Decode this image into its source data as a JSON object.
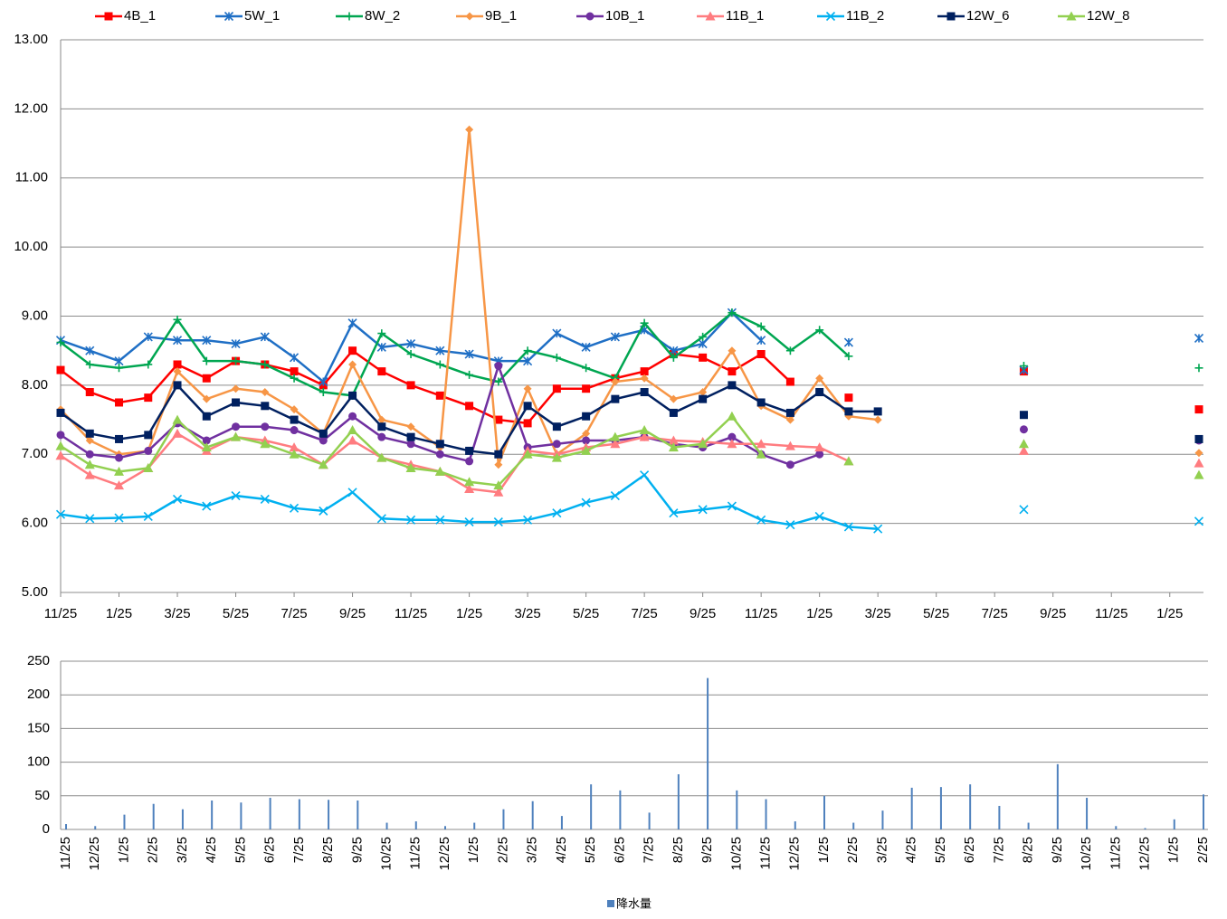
{
  "chart_data": [
    {
      "type": "line",
      "legend": "top",
      "grid": true,
      "ylim": [
        5,
        13
      ],
      "yticks": [
        {
          "value": 5,
          "label": "5.00"
        },
        {
          "value": 6,
          "label": "6.00"
        },
        {
          "value": 7,
          "label": "7.00"
        },
        {
          "value": 8,
          "label": "8.00"
        },
        {
          "value": 9,
          "label": "9.00"
        },
        {
          "value": 10,
          "label": "10.00"
        },
        {
          "value": 11,
          "label": "11.00"
        },
        {
          "value": 12,
          "label": "12.00"
        },
        {
          "value": 13,
          "label": "13.00"
        }
      ],
      "categories": [
        "11/25",
        null,
        "1/25",
        null,
        "3/25",
        null,
        "5/25",
        null,
        "7/25",
        null,
        "9/25",
        null,
        "11/25",
        null,
        "1/25",
        null,
        "3/25",
        null,
        "5/25",
        null,
        "7/25",
        null,
        "9/25",
        null,
        "11/25",
        null,
        "1/25",
        null,
        "3/25",
        null,
        "5/25",
        null,
        "7/25",
        null,
        "9/25",
        null,
        "11/25",
        null,
        "1/25",
        null
      ],
      "series": [
        {
          "name": "4B_1",
          "color": "#ff0000",
          "marker": "square",
          "values": [
            8.22,
            7.9,
            7.75,
            7.82,
            8.3,
            8.1,
            8.35,
            8.3,
            8.2,
            8.0,
            8.5,
            8.2,
            8.0,
            7.85,
            7.7,
            7.5,
            7.45,
            7.95,
            7.95,
            8.1,
            8.2,
            8.45,
            8.4,
            8.2,
            8.45,
            8.05,
            null,
            7.82,
            null,
            null,
            null,
            null,
            null,
            8.2,
            null,
            null,
            null,
            null,
            null,
            7.65
          ]
        },
        {
          "name": "5W_1",
          "color": "#1f6fc5",
          "marker": "star",
          "values": [
            8.65,
            8.5,
            8.35,
            8.7,
            8.65,
            8.65,
            8.6,
            8.7,
            8.4,
            8.05,
            8.9,
            8.55,
            8.6,
            8.5,
            8.45,
            8.35,
            8.35,
            8.75,
            8.55,
            8.7,
            8.8,
            8.5,
            8.6,
            9.05,
            8.65,
            null,
            null,
            8.62,
            null,
            null,
            null,
            null,
            null,
            8.22,
            null,
            null,
            null,
            null,
            null,
            8.68
          ]
        },
        {
          "name": "8W_2",
          "color": "#00a651",
          "marker": "plus",
          "values": [
            8.62,
            8.3,
            8.25,
            8.3,
            8.95,
            8.35,
            8.35,
            8.3,
            8.1,
            7.9,
            7.85,
            8.75,
            8.45,
            8.3,
            8.15,
            8.05,
            8.5,
            8.4,
            8.25,
            8.1,
            8.9,
            8.4,
            8.7,
            9.05,
            8.85,
            8.5,
            8.8,
            8.42,
            null,
            null,
            null,
            null,
            null,
            8.28,
            null,
            null,
            null,
            null,
            null,
            8.25
          ]
        },
        {
          "name": "9B_1",
          "color": "#f79646",
          "marker": "diamond",
          "values": [
            7.65,
            7.2,
            7.0,
            7.05,
            8.2,
            7.8,
            7.95,
            7.9,
            7.65,
            7.3,
            8.3,
            7.5,
            7.4,
            7.1,
            11.7,
            6.85,
            7.95,
            7.0,
            7.3,
            8.05,
            8.1,
            7.8,
            7.9,
            8.5,
            7.7,
            7.5,
            8.1,
            7.55,
            7.5,
            null,
            null,
            null,
            null,
            null,
            null,
            null,
            null,
            null,
            null,
            7.02
          ]
        },
        {
          "name": "10B_1",
          "color": "#7030a0",
          "marker": "circle",
          "values": [
            7.28,
            7.0,
            6.95,
            7.05,
            7.45,
            7.2,
            7.4,
            7.4,
            7.35,
            7.2,
            7.55,
            7.25,
            7.15,
            7.0,
            6.9,
            8.28,
            7.1,
            7.15,
            7.2,
            7.2,
            7.25,
            7.15,
            7.1,
            7.25,
            7.0,
            6.85,
            7.0,
            null,
            null,
            null,
            null,
            null,
            null,
            7.36,
            null,
            null,
            null,
            null,
            null,
            7.2
          ]
        },
        {
          "name": "11B_1",
          "color": "#ff7c80",
          "marker": "triangle",
          "values": [
            6.98,
            6.7,
            6.55,
            6.8,
            7.3,
            7.05,
            7.25,
            7.2,
            7.1,
            6.85,
            7.2,
            6.95,
            6.85,
            6.75,
            6.5,
            6.45,
            7.05,
            7.0,
            7.1,
            7.15,
            7.25,
            7.2,
            7.18,
            7.15,
            7.15,
            7.12,
            7.1,
            6.9,
            null,
            null,
            null,
            null,
            null,
            7.05,
            null,
            null,
            null,
            null,
            null,
            6.87
          ]
        },
        {
          "name": "11B_2",
          "color": "#00b0f0",
          "marker": "x",
          "values": [
            6.13,
            6.07,
            6.08,
            6.1,
            6.35,
            6.25,
            6.4,
            6.35,
            6.22,
            6.18,
            6.45,
            6.07,
            6.05,
            6.05,
            6.02,
            6.02,
            6.05,
            6.15,
            6.3,
            6.4,
            6.7,
            6.15,
            6.2,
            6.25,
            6.05,
            5.98,
            6.1,
            5.95,
            5.92,
            null,
            null,
            null,
            null,
            6.2,
            null,
            null,
            null,
            null,
            null,
            6.03
          ]
        },
        {
          "name": "12W_6",
          "color": "#002060",
          "marker": "square",
          "values": [
            7.6,
            7.3,
            7.22,
            7.28,
            8.0,
            7.55,
            7.75,
            7.7,
            7.5,
            7.3,
            7.85,
            7.4,
            7.25,
            7.15,
            7.05,
            7.0,
            7.7,
            7.4,
            7.55,
            7.8,
            7.9,
            7.6,
            7.8,
            8.0,
            7.75,
            7.6,
            7.9,
            7.62,
            7.62,
            null,
            null,
            null,
            null,
            7.57,
            null,
            null,
            null,
            null,
            null,
            7.22
          ]
        },
        {
          "name": "12W_8",
          "color": "#92d050",
          "marker": "triangle",
          "values": [
            7.12,
            6.85,
            6.75,
            6.8,
            7.5,
            7.1,
            7.25,
            7.15,
            7.0,
            6.85,
            7.35,
            6.95,
            6.8,
            6.75,
            6.6,
            6.55,
            7.0,
            6.95,
            7.05,
            7.25,
            7.35,
            7.1,
            7.15,
            7.55,
            7.0,
            null,
            null,
            6.9,
            null,
            null,
            null,
            null,
            null,
            7.15,
            null,
            null,
            null,
            null,
            null,
            6.7
          ]
        }
      ]
    },
    {
      "type": "bar",
      "legend": "bottom",
      "grid": true,
      "ylim": [
        0,
        250
      ],
      "yticks": [
        0,
        50,
        100,
        150,
        200,
        250
      ],
      "categories": [
        "11/25",
        "12/25",
        "1/25",
        "2/25",
        "3/25",
        "4/25",
        "5/25",
        "6/25",
        "7/25",
        "8/25",
        "9/25",
        "10/25",
        "11/25",
        "12/25",
        "1/25",
        "2/25",
        "3/25",
        "4/25",
        "5/25",
        "6/25",
        "7/25",
        "8/25",
        "9/25",
        "10/25",
        "11/25",
        "12/25",
        "1/25",
        "2/25",
        "3/25",
        "4/25",
        "5/25",
        "6/25",
        "7/25",
        "8/25",
        "9/25",
        "10/25",
        "11/25",
        "12/25",
        "1/25",
        "2/25"
      ],
      "series": [
        {
          "name": "降水量",
          "color": "#4f81bd",
          "values": [
            8,
            5,
            22,
            38,
            30,
            43,
            40,
            47,
            45,
            44,
            43,
            10,
            12,
            5,
            10,
            30,
            42,
            20,
            67,
            58,
            25,
            82,
            225,
            58,
            45,
            12,
            50,
            10,
            28,
            62,
            63,
            67,
            35,
            10,
            97,
            47,
            5,
            2,
            15,
            52
          ]
        }
      ]
    }
  ]
}
